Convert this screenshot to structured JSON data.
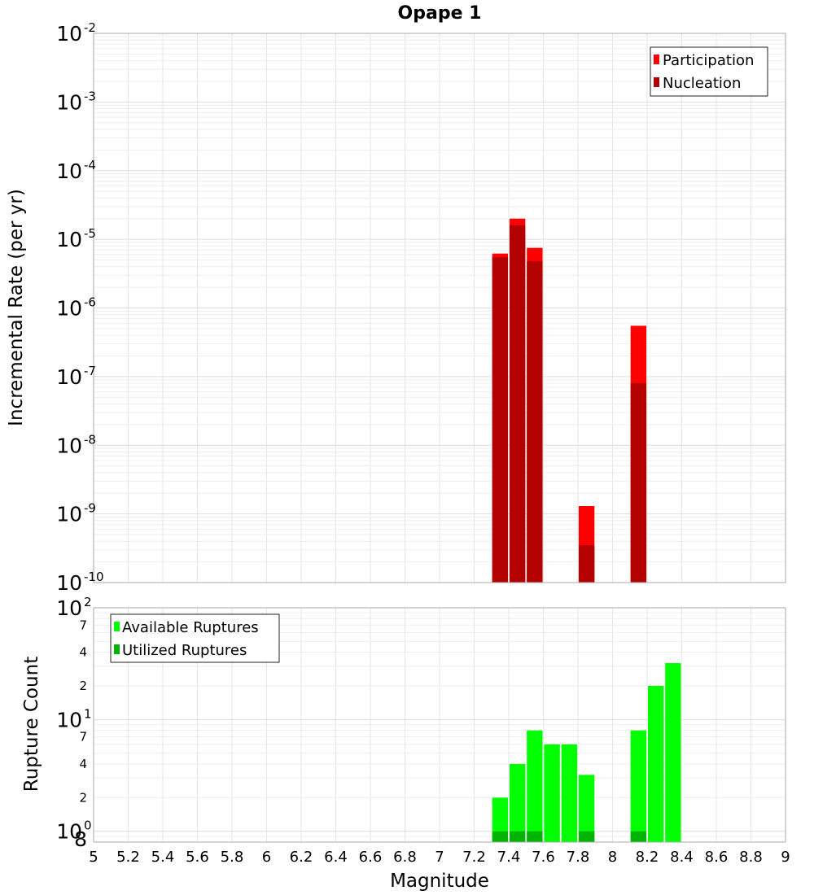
{
  "chart_data": [
    {
      "type": "bar",
      "title": "Opape 1",
      "xlabel": "",
      "ylabel": "Incremental Rate (per yr)",
      "yscale": "log",
      "ylim": [
        1e-10,
        0.01
      ],
      "xlim": [
        5,
        9
      ],
      "grid": true,
      "legend_position": "top-right",
      "yticks": [
        {
          "base": "10",
          "exp": "-10"
        },
        {
          "base": "10",
          "exp": "-9"
        },
        {
          "base": "10",
          "exp": "-8"
        },
        {
          "base": "10",
          "exp": "-7"
        },
        {
          "base": "10",
          "exp": "-6"
        },
        {
          "base": "10",
          "exp": "-5"
        },
        {
          "base": "10",
          "exp": "-4"
        },
        {
          "base": "10",
          "exp": "-3"
        },
        {
          "base": "10",
          "exp": "-2"
        }
      ],
      "series": [
        {
          "name": "Participation",
          "color": "#ff0000",
          "x": [
            7.35,
            7.45,
            7.55,
            7.85,
            8.15
          ],
          "values": [
            6.2e-06,
            2e-05,
            7.5e-06,
            1.3e-09,
            5.5e-07
          ]
        },
        {
          "name": "Nucleation",
          "color": "#b30000",
          "x": [
            7.35,
            7.45,
            7.55,
            7.85,
            8.15
          ],
          "values": [
            5.5e-06,
            1.6e-05,
            4.8e-06,
            3.5e-10,
            8e-08
          ]
        }
      ]
    },
    {
      "type": "bar",
      "title": "",
      "xlabel": "Magnitude",
      "ylabel": "Rupture Count",
      "yscale": "log",
      "ylim": [
        0.8,
        100
      ],
      "xlim": [
        5,
        9
      ],
      "grid": true,
      "legend_position": "top-left",
      "xticks": [
        "5",
        "5.2",
        "5.4",
        "5.6",
        "5.8",
        "6",
        "6.2",
        "6.4",
        "6.6",
        "6.8",
        "7",
        "7.2",
        "7.4",
        "7.6",
        "7.8",
        "8",
        "8.2",
        "8.4",
        "8.6",
        "8.8",
        "9"
      ],
      "yticks": [
        {
          "base": "10",
          "exp": "0"
        },
        {
          "base": "10",
          "exp": "1"
        },
        {
          "base": "10",
          "exp": "2"
        }
      ],
      "minor_tick_labels": [
        "8",
        "2",
        "4",
        "7",
        "2",
        "4",
        "7"
      ],
      "series": [
        {
          "name": "Available Ruptures",
          "color": "#00ff00",
          "x": [
            7.35,
            7.45,
            7.55,
            7.65,
            7.75,
            7.85,
            8.15,
            8.25,
            8.35
          ],
          "values": [
            2,
            4,
            8,
            6,
            6,
            3.2,
            8,
            20,
            32
          ]
        },
        {
          "name": "Utilized Ruptures",
          "color": "#00b300",
          "x": [
            7.35,
            7.45,
            7.55,
            7.85,
            8.15
          ],
          "values": [
            1,
            1,
            1,
            1,
            1
          ]
        }
      ]
    }
  ]
}
